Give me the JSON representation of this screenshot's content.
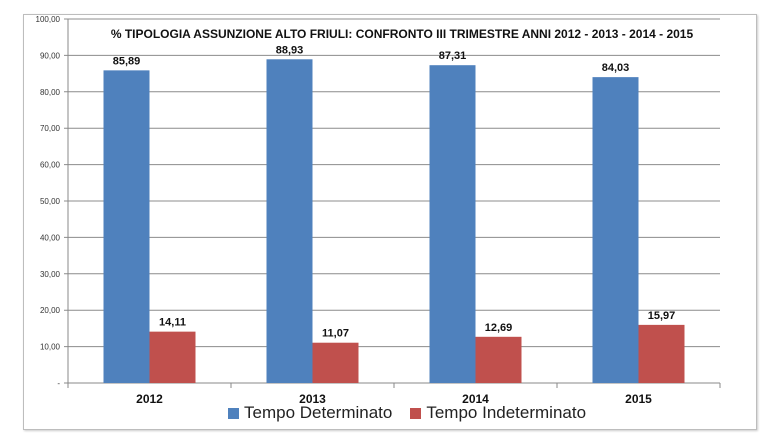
{
  "chart_data": {
    "type": "bar",
    "title": "% TIPOLOGIA ASSUNZIONE ALTO FRIULI: CONFRONTO III TRIMESTRE ANNI 2012 - 2013 - 2014 - 2015",
    "categories": [
      "2012",
      "2013",
      "2014",
      "2015"
    ],
    "series": [
      {
        "name": "Tempo Determinato",
        "values": [
          85.89,
          88.93,
          87.31,
          84.03
        ],
        "labels": [
          "85,89",
          "88,93",
          "87,31",
          "84,03"
        ],
        "color": "#4f81bd"
      },
      {
        "name": "Tempo Indeterminato",
        "values": [
          14.11,
          11.07,
          12.69,
          15.97
        ],
        "labels": [
          "14,11",
          "11,07",
          "12,69",
          "15,97"
        ],
        "color": "#c0504d"
      }
    ],
    "ylim": [
      0,
      100
    ],
    "yticks": [
      0,
      10,
      20,
      30,
      40,
      50,
      60,
      70,
      80,
      90,
      100
    ],
    "ytick_labels": [
      "-",
      "10,00",
      "20,00",
      "30,00",
      "40,00",
      "50,00",
      "60,00",
      "70,00",
      "80,00",
      "90,00",
      "100,00"
    ],
    "grid": true,
    "legend": "bottom",
    "xlabel": "",
    "ylabel": ""
  }
}
